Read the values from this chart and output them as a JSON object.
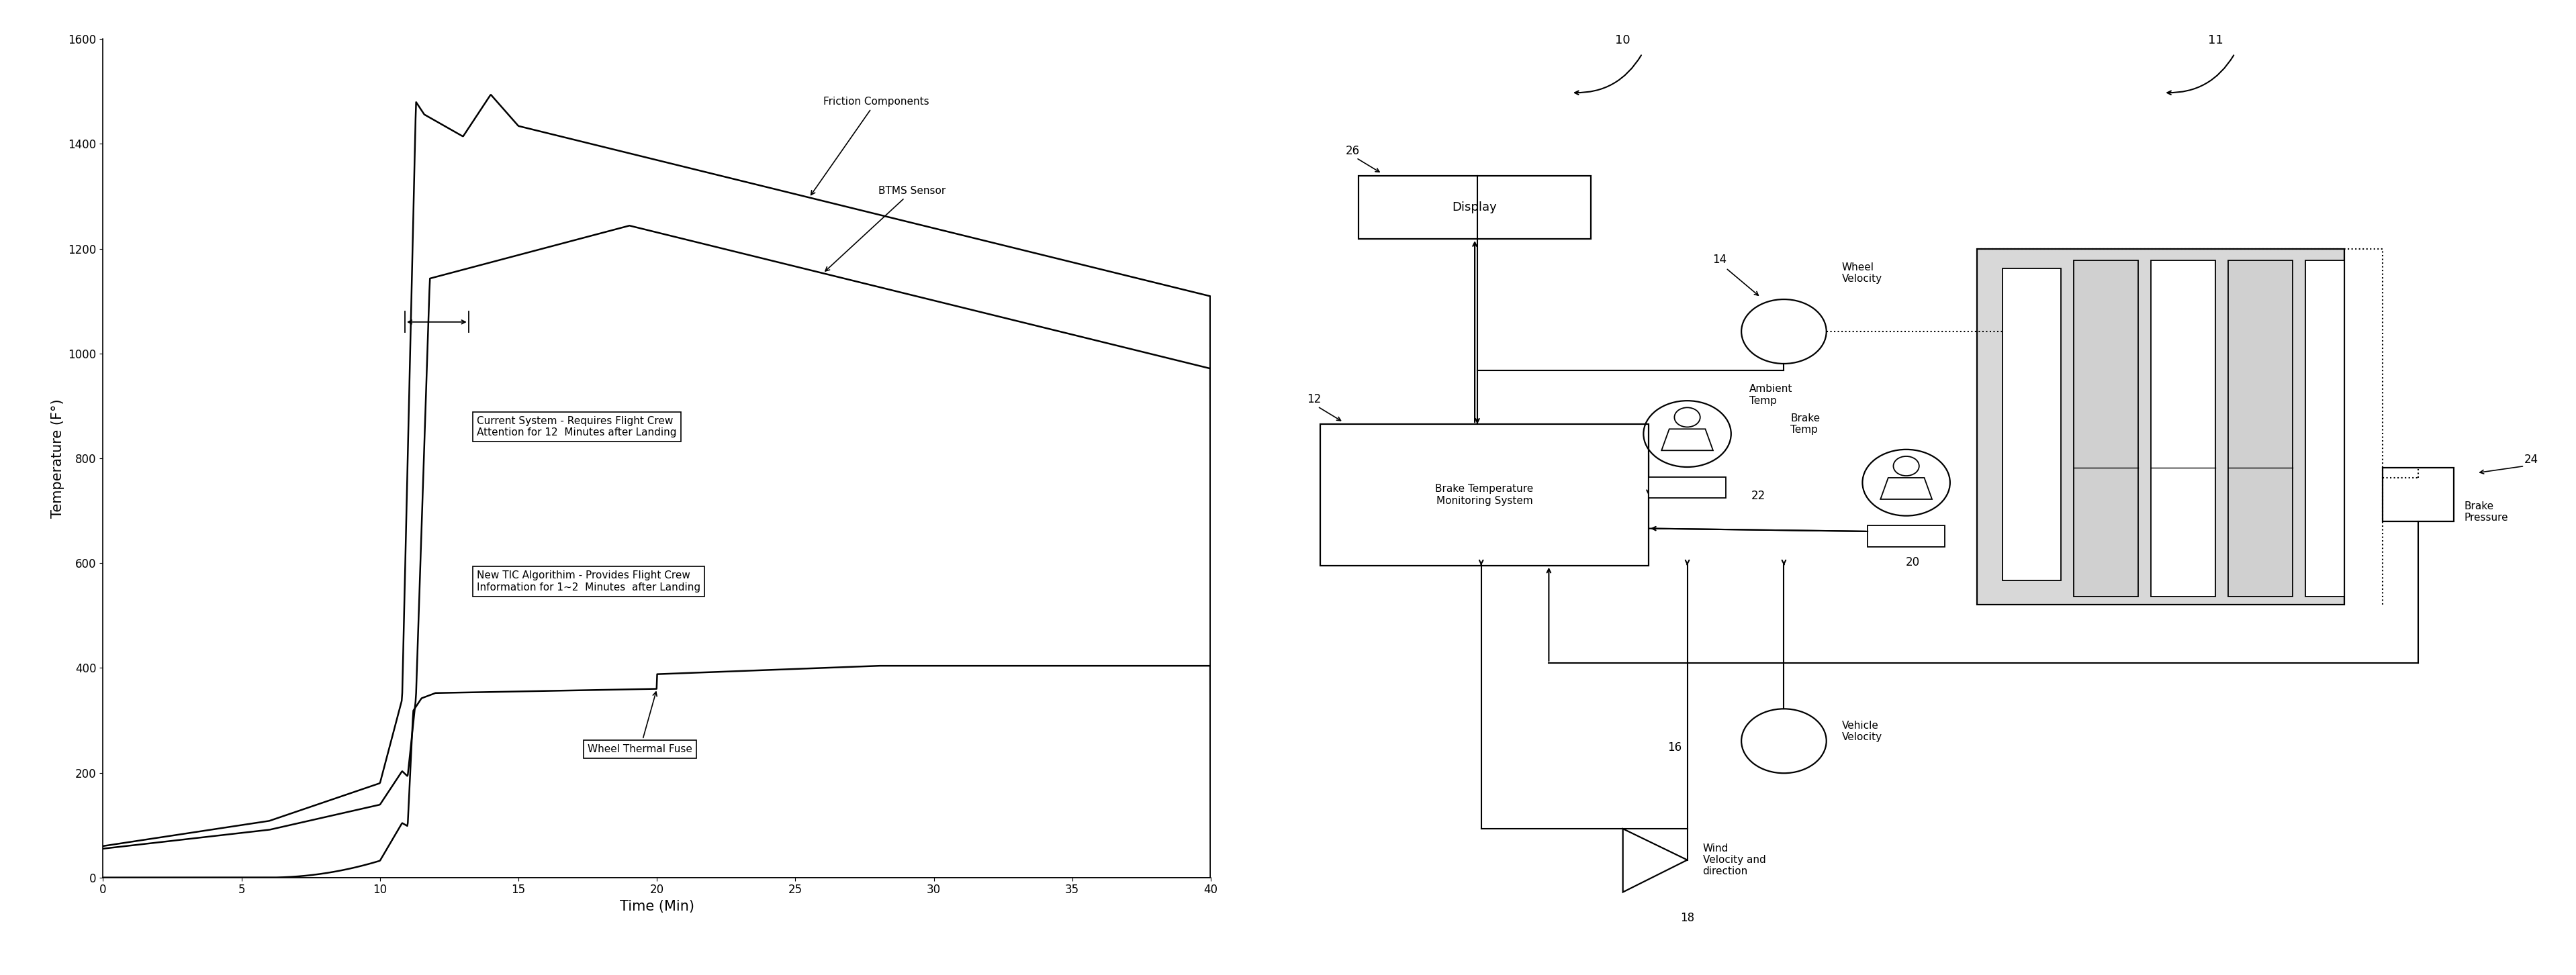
{
  "fig_width": 38.36,
  "fig_height": 14.53,
  "bg_color": "#ffffff",
  "xlabel": "Time (Min)",
  "ylabel": "Temperature (F°)",
  "xlim": [
    0,
    40
  ],
  "ylim": [
    0,
    1600
  ],
  "xticks": [
    0,
    5,
    10,
    15,
    20,
    25,
    30,
    35,
    40
  ],
  "yticks": [
    0,
    200,
    400,
    600,
    800,
    1000,
    1200,
    1400,
    1600
  ],
  "ann_friction": "Friction Components",
  "ann_btms": "BTMS Sensor",
  "ann_current": "Current System - Requires Flight Crew\nAttention for 12  Minutes after Landing",
  "ann_new_tic": "New TIC Algorithim - Provides Flight Crew\nInformation for 1~2  Minutes  after Landing",
  "ann_wheel_fuse": "Wheel Thermal Fuse",
  "diag_10": "10",
  "diag_11": "11",
  "diag_12": "12",
  "diag_14": "14",
  "diag_16": "16",
  "diag_18": "18",
  "diag_20": "20",
  "diag_22": "22",
  "diag_24": "24",
  "diag_26": "26",
  "diag_display": "Display",
  "diag_btms": "Brake Temperature\nMonitoring System",
  "diag_wheel_vel": "Wheel\nVelocity",
  "diag_ambient": "Ambient\nTemp",
  "diag_brake_temp": "Brake\nTemp",
  "diag_vehicle_vel": "Vehicle\nVelocity",
  "diag_wind": "Wind\nVelocity and\ndirection",
  "diag_brake_press": "Brake\nPressure"
}
